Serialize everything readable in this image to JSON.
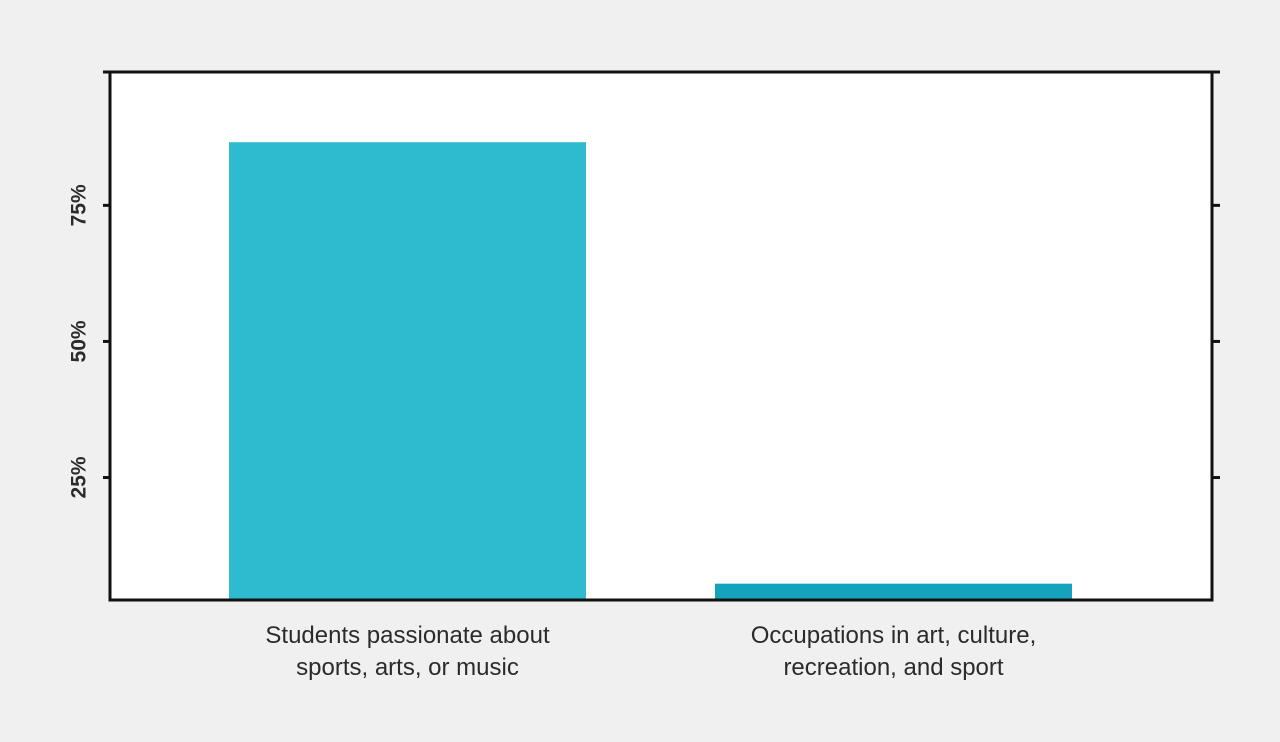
{
  "chart_data": {
    "type": "bar",
    "categories": [
      "Students passionate about sports, arts, or music",
      "Occupations in art, culture, recreation, and sport"
    ],
    "values": [
      86.6,
      5.5
    ],
    "colors": [
      "#2ebbd0",
      "#13a3bd"
    ],
    "ylim": [
      2.5,
      99.5
    ],
    "yticks": [
      {
        "value": 25,
        "label": "25%"
      },
      {
        "value": 50,
        "label": "50%"
      },
      {
        "value": 75,
        "label": "75%"
      }
    ]
  }
}
